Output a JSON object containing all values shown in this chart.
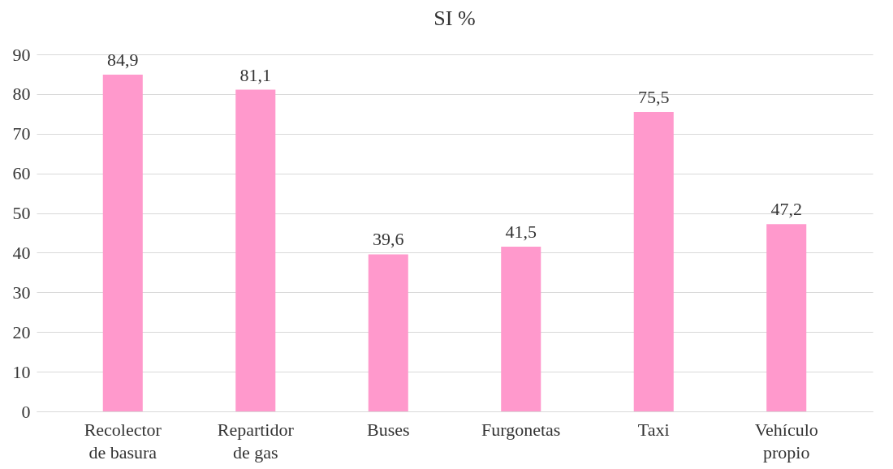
{
  "chart_data": {
    "type": "bar",
    "title": "SI %",
    "categories": [
      "Recolector de basura",
      "Repartidor de gas",
      "Buses",
      "Furgonetas",
      "Taxi",
      "Vehículo propio"
    ],
    "values": [
      84.9,
      81.1,
      39.6,
      41.5,
      75.5,
      47.2
    ],
    "value_labels": [
      "84,9",
      "81,1",
      "39,6",
      "41,5",
      "75,5",
      "47,2"
    ],
    "color": "#ff99cc",
    "ylim": [
      0,
      90
    ],
    "yticks": [
      0,
      10,
      20,
      30,
      40,
      50,
      60,
      70,
      80,
      90
    ],
    "grid": "y"
  }
}
